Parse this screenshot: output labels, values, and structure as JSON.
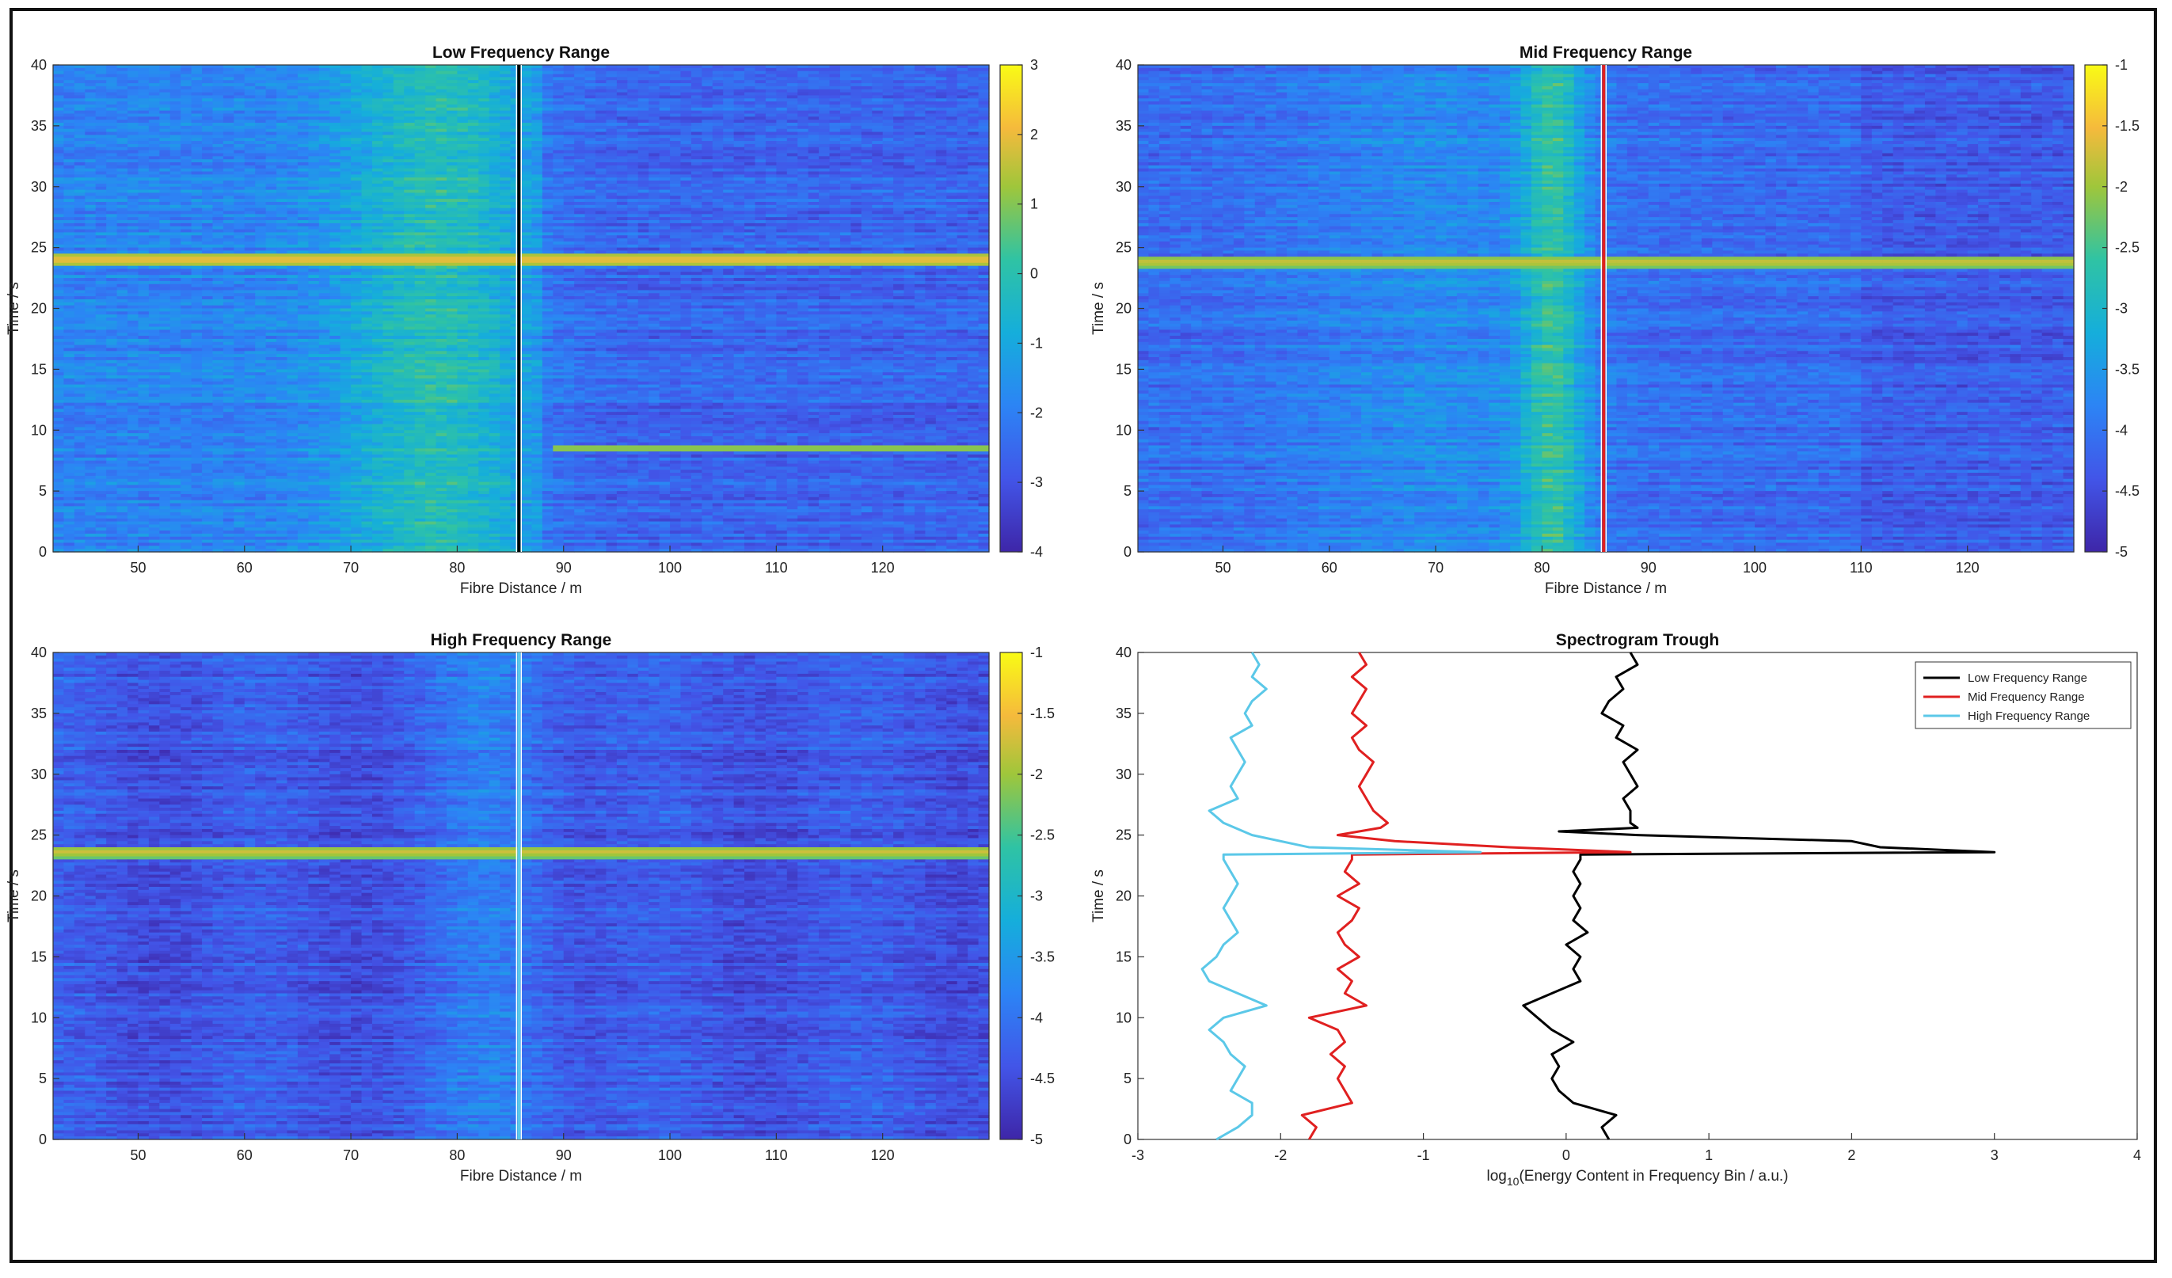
{
  "chart_data": [
    {
      "id": "low",
      "type": "heatmap",
      "title": "Low Frequency Range",
      "xlabel": "Fibre Distance / m",
      "ylabel": "Time / s",
      "xlim": [
        42,
        130
      ],
      "ylim": [
        0,
        40
      ],
      "xticks": [
        50,
        60,
        70,
        80,
        90,
        100,
        110,
        120
      ],
      "yticks": [
        0,
        5,
        10,
        15,
        20,
        25,
        30,
        35,
        40
      ],
      "clim": [
        -4,
        3
      ],
      "cticks": [
        "3",
        "2",
        "1",
        "0",
        "-1",
        "-2",
        "-3",
        "-4"
      ],
      "cvalues": [
        3,
        2,
        1,
        0,
        -1,
        -2,
        -3,
        -4
      ],
      "colormap": "parula",
      "event_time": 24,
      "marker": {
        "x": 85.8,
        "color": "#000000"
      }
    },
    {
      "id": "mid",
      "type": "heatmap",
      "title": "Mid Frequency Range",
      "xlabel": "Fibre Distance / m",
      "ylabel": "Time / s",
      "xlim": [
        42,
        130
      ],
      "ylim": [
        0,
        40
      ],
      "xticks": [
        50,
        60,
        70,
        80,
        90,
        100,
        110,
        120
      ],
      "yticks": [
        0,
        5,
        10,
        15,
        20,
        25,
        30,
        35,
        40
      ],
      "clim": [
        -5,
        -1
      ],
      "cticks": [
        "-1",
        "-1.5",
        "-2",
        "-2.5",
        "-3",
        "-3.5",
        "-4",
        "-4.5",
        "-5"
      ],
      "cvalues": [
        -1,
        -1.5,
        -2,
        -2.5,
        -3,
        -3.5,
        -4,
        -4.5,
        -5
      ],
      "colormap": "parula",
      "event_time": 23.8,
      "marker": {
        "x": 85.8,
        "color": "#e02020"
      }
    },
    {
      "id": "high",
      "type": "heatmap",
      "title": "High Frequency Range",
      "xlabel": "Fibre Distance / m",
      "ylabel": "Time / s",
      "xlim": [
        42,
        130
      ],
      "ylim": [
        0,
        40
      ],
      "xticks": [
        50,
        60,
        70,
        80,
        90,
        100,
        110,
        120
      ],
      "yticks": [
        0,
        5,
        10,
        15,
        20,
        25,
        30,
        35,
        40
      ],
      "clim": [
        -5,
        -1
      ],
      "cticks": [
        "-1",
        "-1.5",
        "-2",
        "-2.5",
        "-3",
        "-3.5",
        "-4",
        "-4.5",
        "-5"
      ],
      "cvalues": [
        -1,
        -1.5,
        -2,
        -2.5,
        -3,
        -3.5,
        -4,
        -4.5,
        -5
      ],
      "colormap": "parula",
      "event_time": 23.6,
      "marker": {
        "x": 85.8,
        "color": "#5bc8e8"
      }
    },
    {
      "id": "trough",
      "type": "line",
      "title": "Spectrogram Trough",
      "xlabel_pre": "log",
      "xlabel_sub": "10",
      "xlabel_post": "(Energy Content in Frequency Bin / a.u.)",
      "ylabel": "Time / s",
      "xlim": [
        -3,
        4
      ],
      "ylim": [
        0,
        40
      ],
      "xticks": [
        -3,
        -2,
        -1,
        0,
        1,
        2,
        3,
        4
      ],
      "yticks": [
        0,
        5,
        10,
        15,
        20,
        25,
        30,
        35,
        40
      ],
      "legend": "top-right",
      "series": [
        {
          "name": "Low Frequency Range",
          "color": "#000000",
          "points": [
            [
              0.3,
              0
            ],
            [
              0.25,
              1
            ],
            [
              0.35,
              2
            ],
            [
              0.05,
              3
            ],
            [
              -0.05,
              4
            ],
            [
              -0.1,
              5
            ],
            [
              -0.05,
              6
            ],
            [
              -0.1,
              7
            ],
            [
              0.05,
              8
            ],
            [
              -0.1,
              9
            ],
            [
              -0.2,
              10
            ],
            [
              -0.3,
              11
            ],
            [
              -0.1,
              12
            ],
            [
              0.1,
              13
            ],
            [
              0.05,
              14
            ],
            [
              0.1,
              15
            ],
            [
              0.0,
              16
            ],
            [
              0.15,
              17
            ],
            [
              0.05,
              18
            ],
            [
              0.1,
              19
            ],
            [
              0.05,
              20
            ],
            [
              0.1,
              21
            ],
            [
              0.05,
              22
            ],
            [
              0.1,
              23
            ],
            [
              0.1,
              23.4
            ],
            [
              3.0,
              23.6
            ],
            [
              2.2,
              24
            ],
            [
              2.0,
              24.5
            ],
            [
              0.5,
              25
            ],
            [
              -0.05,
              25.3
            ],
            [
              0.5,
              25.6
            ],
            [
              0.45,
              26
            ],
            [
              0.45,
              27
            ],
            [
              0.4,
              28
            ],
            [
              0.5,
              29
            ],
            [
              0.45,
              30
            ],
            [
              0.4,
              31
            ],
            [
              0.5,
              32
            ],
            [
              0.35,
              33
            ],
            [
              0.4,
              34
            ],
            [
              0.25,
              35
            ],
            [
              0.3,
              36
            ],
            [
              0.4,
              37
            ],
            [
              0.35,
              38
            ],
            [
              0.5,
              39
            ],
            [
              0.45,
              40
            ]
          ]
        },
        {
          "name": "Mid Frequency Range",
          "color": "#e02020",
          "points": [
            [
              -1.8,
              0
            ],
            [
              -1.75,
              1
            ],
            [
              -1.85,
              2
            ],
            [
              -1.5,
              3
            ],
            [
              -1.55,
              4
            ],
            [
              -1.6,
              5
            ],
            [
              -1.55,
              6
            ],
            [
              -1.65,
              7
            ],
            [
              -1.55,
              8
            ],
            [
              -1.6,
              9
            ],
            [
              -1.8,
              10
            ],
            [
              -1.4,
              11
            ],
            [
              -1.55,
              12
            ],
            [
              -1.5,
              13
            ],
            [
              -1.6,
              14
            ],
            [
              -1.45,
              15
            ],
            [
              -1.55,
              16
            ],
            [
              -1.6,
              17
            ],
            [
              -1.5,
              18
            ],
            [
              -1.45,
              19
            ],
            [
              -1.6,
              20
            ],
            [
              -1.45,
              21
            ],
            [
              -1.55,
              22
            ],
            [
              -1.5,
              23
            ],
            [
              -1.5,
              23.4
            ],
            [
              0.45,
              23.6
            ],
            [
              -0.4,
              24
            ],
            [
              -1.2,
              24.5
            ],
            [
              -1.6,
              25
            ],
            [
              -1.3,
              25.6
            ],
            [
              -1.25,
              26
            ],
            [
              -1.35,
              27
            ],
            [
              -1.4,
              28
            ],
            [
              -1.45,
              29
            ],
            [
              -1.4,
              30
            ],
            [
              -1.35,
              31
            ],
            [
              -1.45,
              32
            ],
            [
              -1.5,
              33
            ],
            [
              -1.4,
              34
            ],
            [
              -1.5,
              35
            ],
            [
              -1.45,
              36
            ],
            [
              -1.4,
              37
            ],
            [
              -1.5,
              38
            ],
            [
              -1.4,
              39
            ],
            [
              -1.45,
              40
            ]
          ]
        },
        {
          "name": "High Frequency Range",
          "color": "#5bc8e8",
          "points": [
            [
              -2.45,
              0
            ],
            [
              -2.3,
              1
            ],
            [
              -2.2,
              2
            ],
            [
              -2.2,
              3
            ],
            [
              -2.35,
              4
            ],
            [
              -2.3,
              5
            ],
            [
              -2.25,
              6
            ],
            [
              -2.35,
              7
            ],
            [
              -2.4,
              8
            ],
            [
              -2.5,
              9
            ],
            [
              -2.4,
              10
            ],
            [
              -2.1,
              11
            ],
            [
              -2.3,
              12
            ],
            [
              -2.5,
              13
            ],
            [
              -2.55,
              14
            ],
            [
              -2.45,
              15
            ],
            [
              -2.4,
              16
            ],
            [
              -2.3,
              17
            ],
            [
              -2.35,
              18
            ],
            [
              -2.4,
              19
            ],
            [
              -2.35,
              20
            ],
            [
              -2.3,
              21
            ],
            [
              -2.35,
              22
            ],
            [
              -2.4,
              23
            ],
            [
              -2.4,
              23.4
            ],
            [
              -0.6,
              23.6
            ],
            [
              -1.8,
              24
            ],
            [
              -2.2,
              25
            ],
            [
              -2.4,
              26
            ],
            [
              -2.5,
              27
            ],
            [
              -2.3,
              28
            ],
            [
              -2.35,
              29
            ],
            [
              -2.3,
              30
            ],
            [
              -2.25,
              31
            ],
            [
              -2.3,
              32
            ],
            [
              -2.35,
              33
            ],
            [
              -2.2,
              34
            ],
            [
              -2.25,
              35
            ],
            [
              -2.2,
              36
            ],
            [
              -2.1,
              37
            ],
            [
              -2.2,
              38
            ],
            [
              -2.15,
              39
            ],
            [
              -2.2,
              40
            ]
          ]
        }
      ]
    }
  ]
}
